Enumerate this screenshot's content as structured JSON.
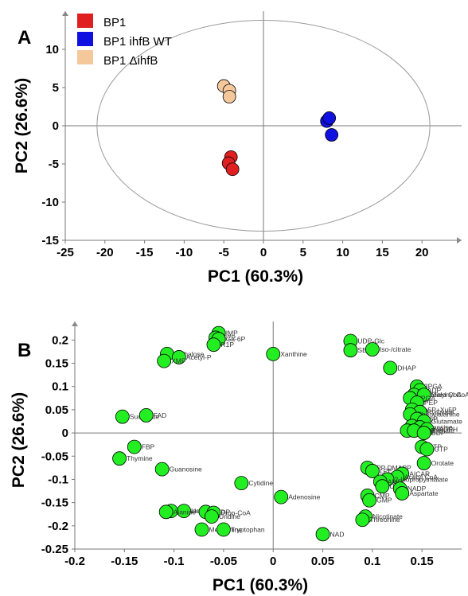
{
  "chart_data": [
    {
      "type": "scatter",
      "panel": "A",
      "xlabel": "PC1 (60.3%)",
      "ylabel": "PC2 (26.6%)",
      "xlim": [
        -25,
        25
      ],
      "ylim": [
        -15,
        15
      ],
      "xticks": [
        -25,
        -20,
        -15,
        -10,
        -5,
        0,
        5,
        10,
        15,
        20
      ],
      "yticks": [
        -15,
        -10,
        -5,
        0,
        5,
        10
      ],
      "ellipse": {
        "cx": 0,
        "cy": 0,
        "rx": 21,
        "ry": 13.8
      },
      "legend": {
        "position": "top-left",
        "entries": [
          {
            "label": "BP1",
            "color": "#e02020"
          },
          {
            "label": "BP1 ihfB WT",
            "color": "#1010e0"
          },
          {
            "label": "BP1 ΔihfB",
            "color": "#f5c89c"
          }
        ]
      },
      "series": [
        {
          "color": "#e02020",
          "points": [
            [
              -4.1,
              -4.1
            ],
            [
              -4.4,
              -4.9
            ],
            [
              -3.9,
              -5.7
            ]
          ]
        },
        {
          "color": "#1010e0",
          "points": [
            [
              8.0,
              0.6
            ],
            [
              8.3,
              1.0
            ],
            [
              8.6,
              -1.2
            ]
          ]
        },
        {
          "color": "#f5c89c",
          "points": [
            [
              -5.0,
              5.2
            ],
            [
              -4.3,
              4.6
            ],
            [
              -4.3,
              3.8
            ]
          ]
        }
      ]
    },
    {
      "type": "scatter",
      "panel": "B",
      "xlabel": "PC1 (60.3%)",
      "ylabel": "PC2 (26.6%)",
      "xlim": [
        -0.2,
        0.19
      ],
      "ylim": [
        -0.25,
        0.24
      ],
      "xticks": [
        "-0.2",
        "-0.15",
        "-0.1",
        "-0.05",
        "0",
        "0.05",
        "0.1",
        "0.15"
      ],
      "yticks": [
        "-0.25",
        "-0.2",
        "-0.15",
        "-0.1",
        "-0.05",
        "0",
        "0.05",
        "0.1",
        "0.15",
        "0.2"
      ],
      "point_color": "#22ee22",
      "points": [
        {
          "x": -0.055,
          "y": 0.215,
          "label": "IMP"
        },
        {
          "x": -0.058,
          "y": 0.205,
          "label": "S7P"
        },
        {
          "x": -0.055,
          "y": 0.202,
          "label": "Ga-6P"
        },
        {
          "x": -0.06,
          "y": 0.19,
          "label": "R1P"
        },
        {
          "x": -0.107,
          "y": 0.17,
          "label": "Trehalose"
        },
        {
          "x": -0.095,
          "y": 0.163,
          "label": "Acetyl-P"
        },
        {
          "x": -0.11,
          "y": 0.155,
          "label": "XMP"
        },
        {
          "x": 0.0,
          "y": 0.17,
          "label": "Xanthine"
        },
        {
          "x": 0.078,
          "y": 0.198,
          "label": "UDP-Glc"
        },
        {
          "x": 0.078,
          "y": 0.178,
          "label": "SBP"
        },
        {
          "x": 0.1,
          "y": 0.18,
          "label": "Iso-/citrate"
        },
        {
          "x": 0.118,
          "y": 0.14,
          "label": "DHAP"
        },
        {
          "x": 0.145,
          "y": 0.1,
          "label": "3PGA"
        },
        {
          "x": 0.148,
          "y": 0.092,
          "label": "ADP"
        },
        {
          "x": 0.142,
          "y": 0.082,
          "label": "Succinyl CoA"
        },
        {
          "x": 0.152,
          "y": 0.082,
          "label": "Malonyl CoA"
        },
        {
          "x": 0.138,
          "y": 0.075,
          "label": "2PGA"
        },
        {
          "x": 0.145,
          "y": 0.065,
          "label": "PEP"
        },
        {
          "x": 0.14,
          "y": 0.05,
          "label": "Ru5P+Xu5P"
        },
        {
          "x": 0.148,
          "y": 0.045,
          "label": "Pyruvate"
        },
        {
          "x": 0.138,
          "y": 0.04,
          "label": "Phenylalanine"
        },
        {
          "x": 0.145,
          "y": 0.03,
          "label": "G6P"
        },
        {
          "x": 0.152,
          "y": 0.025,
          "label": "Glutamate"
        },
        {
          "x": 0.14,
          "y": 0.015,
          "label": "F6P"
        },
        {
          "x": 0.148,
          "y": 0.012,
          "label": "Tyrosine"
        },
        {
          "x": 0.155,
          "y": 0.008,
          "label": "NADPH"
        },
        {
          "x": 0.135,
          "y": 0.005,
          "label": "Pantothenate"
        },
        {
          "x": 0.142,
          "y": 0.005,
          "label": "CDP"
        },
        {
          "x": 0.152,
          "y": 0.0,
          "label": "UDP"
        },
        {
          "x": 0.15,
          "y": -0.03,
          "label": "ATP"
        },
        {
          "x": 0.155,
          "y": -0.035,
          "label": "GTP"
        },
        {
          "x": 0.152,
          "y": -0.065,
          "label": "Orotate"
        },
        {
          "x": 0.095,
          "y": -0.075,
          "label": "IPP DMAPP"
        },
        {
          "x": 0.1,
          "y": -0.082,
          "label": "LPE"
        },
        {
          "x": 0.13,
          "y": -0.088,
          "label": "AICAR"
        },
        {
          "x": 0.125,
          "y": -0.095,
          "label": "Acetyl CoA"
        },
        {
          "x": 0.115,
          "y": -0.1,
          "label": "2-Isopropylmalate"
        },
        {
          "x": 0.108,
          "y": -0.105,
          "label": "AMP"
        },
        {
          "x": 0.11,
          "y": -0.115,
          "label": "UMP"
        },
        {
          "x": 0.128,
          "y": -0.12,
          "label": "NADP"
        },
        {
          "x": 0.13,
          "y": -0.13,
          "label": "Aspartate"
        },
        {
          "x": 0.095,
          "y": -0.135,
          "label": "CMP"
        },
        {
          "x": 0.097,
          "y": -0.145,
          "label": "GMP"
        },
        {
          "x": 0.093,
          "y": -0.18,
          "label": "Nicotinate"
        },
        {
          "x": 0.09,
          "y": -0.187,
          "label": "Threonine"
        },
        {
          "x": -0.152,
          "y": 0.035,
          "label": "Succinate"
        },
        {
          "x": -0.128,
          "y": 0.038,
          "label": "FAD"
        },
        {
          "x": -0.14,
          "y": -0.03,
          "label": "FBP"
        },
        {
          "x": -0.155,
          "y": -0.055,
          "label": "Thymine"
        },
        {
          "x": -0.112,
          "y": -0.078,
          "label": "Guanosine"
        },
        {
          "x": -0.032,
          "y": -0.108,
          "label": "Cytidine"
        },
        {
          "x": 0.008,
          "y": -0.138,
          "label": "Adenosine"
        },
        {
          "x": -0.103,
          "y": -0.168,
          "label": "Inosine"
        },
        {
          "x": -0.09,
          "y": -0.168,
          "label": "Uracil"
        },
        {
          "x": -0.068,
          "y": -0.17,
          "label": "dTDP"
        },
        {
          "x": -0.06,
          "y": -0.172,
          "label": "Prop-CoA"
        },
        {
          "x": -0.108,
          "y": -0.17,
          "label": "Alanine"
        },
        {
          "x": -0.062,
          "y": -0.18,
          "label": "Uridine"
        },
        {
          "x": -0.072,
          "y": -0.208,
          "label": "Methionine"
        },
        {
          "x": -0.05,
          "y": -0.208,
          "label": "Tryptophan"
        },
        {
          "x": 0.05,
          "y": -0.218,
          "label": "NAD"
        }
      ]
    }
  ]
}
